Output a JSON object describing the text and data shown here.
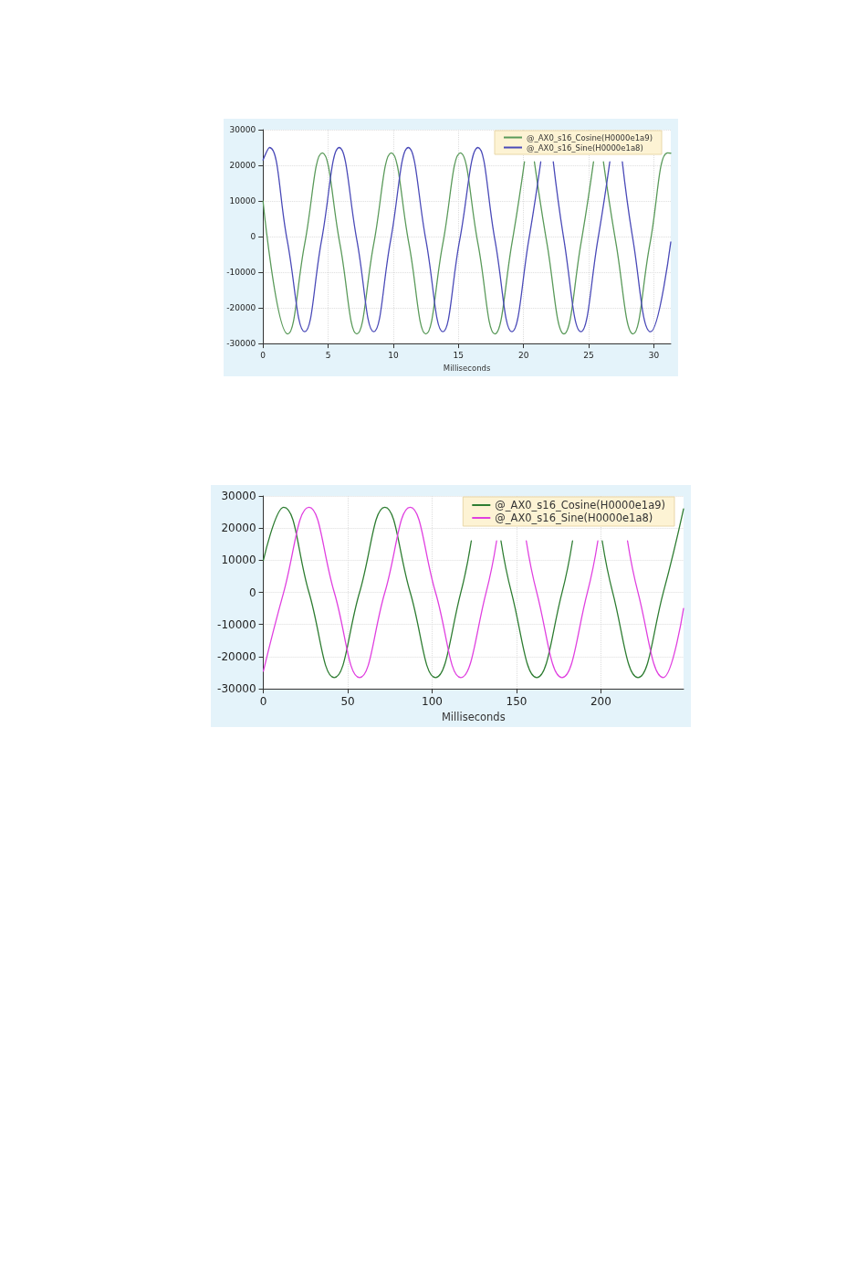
{
  "chart_data": [
    {
      "type": "line",
      "xlabel": "Milliseconds",
      "xlim": [
        0,
        31.3
      ],
      "xticks": [
        0,
        5,
        10,
        15,
        20,
        25,
        30
      ],
      "ylim": [
        -30000,
        30000
      ],
      "yticks": [
        -30000,
        -20000,
        -10000,
        0,
        10000,
        20000,
        30000
      ],
      "grid": true,
      "legend": "top right",
      "marker": "none",
      "line_style": "solid",
      "series": [
        {
          "name": "@_AX0_s16_Cosine(H0000e1a9)",
          "color": "#5a9a5a",
          "x": [
            0,
            1.9,
            3.2,
            4.55,
            5.9,
            7.2,
            8.5,
            9.85,
            11.2,
            12.5,
            13.8,
            15.15,
            16.5,
            17.8,
            19.1,
            20.07,
            20.45,
            20.83,
            21.8,
            23.1,
            24.4,
            25.37,
            25.75,
            26.13,
            27.1,
            28.4,
            29.7,
            31.05,
            31.3
          ],
          "values": [
            10000,
            -27300,
            -2000,
            23500,
            -2000,
            -27300,
            -2000,
            23500,
            -2000,
            -27300,
            -2000,
            23500,
            -2000,
            -27300,
            -2000,
            21000,
            null,
            21000,
            -2000,
            -27300,
            -2000,
            21000,
            null,
            21000,
            -2000,
            -27300,
            -2000,
            23500,
            23400
          ]
        },
        {
          "name": "@_AX0_s16_Sine(H0000e1a8)",
          "color": "#4a4ab8",
          "x": [
            0,
            0.5,
            1.85,
            3.2,
            4.5,
            5.85,
            7.2,
            8.5,
            9.8,
            11.15,
            12.5,
            13.8,
            15.1,
            16.5,
            17.8,
            19.1,
            20.4,
            21.32,
            21.8,
            22.28,
            23.1,
            24.4,
            25.7,
            26.62,
            27.1,
            27.58,
            28.4,
            29.75,
            31.3
          ],
          "values": [
            21500,
            25000,
            -900,
            -26700,
            -900,
            25000,
            -900,
            -26700,
            -900,
            25000,
            -900,
            -26700,
            -900,
            25000,
            -900,
            -26700,
            -900,
            21000,
            null,
            21000,
            -900,
            -26700,
            -900,
            21000,
            null,
            21000,
            -900,
            -26700,
            -1500
          ]
        }
      ]
    },
    {
      "type": "line",
      "xlabel": "Milliseconds",
      "xlim": [
        0,
        249
      ],
      "xticks": [
        0,
        50,
        100,
        150,
        200
      ],
      "ylim": [
        -30000,
        30000
      ],
      "yticks": [
        -30000,
        -20000,
        -10000,
        0,
        10000,
        20000,
        30000
      ],
      "grid": true,
      "legend": "top right",
      "marker": "none",
      "line_style": "solid",
      "series": [
        {
          "name": "@_AX0_s16_Cosine(H0000e1a9)",
          "color": "#2e7d32",
          "x": [
            0,
            12,
            27,
            42,
            57,
            72,
            87,
            102,
            117,
            123.2,
            132,
            140.8,
            147,
            162,
            177,
            183.2,
            192,
            200.8,
            207,
            222,
            237,
            249
          ],
          "values": [
            10000,
            26500,
            0,
            -26500,
            0,
            26500,
            0,
            -26500,
            0,
            16000,
            null,
            16000,
            0,
            -26500,
            0,
            16000,
            null,
            16000,
            0,
            -26500,
            0,
            26000
          ]
        },
        {
          "name": "@_AX0_s16_Sine(H0000e1a8)",
          "color": "#e040e0",
          "x": [
            0,
            12,
            27,
            42,
            57,
            72,
            87,
            102,
            117,
            132,
            138.2,
            147,
            155.8,
            162,
            177,
            192,
            198.2,
            207,
            215.8,
            222,
            237,
            249
          ],
          "values": [
            -24500,
            0,
            26500,
            0,
            -26500,
            0,
            26500,
            0,
            -26500,
            0,
            16000,
            null,
            16000,
            0,
            -26500,
            0,
            16000,
            null,
            16000,
            0,
            -26500,
            -5000
          ]
        }
      ]
    }
  ]
}
